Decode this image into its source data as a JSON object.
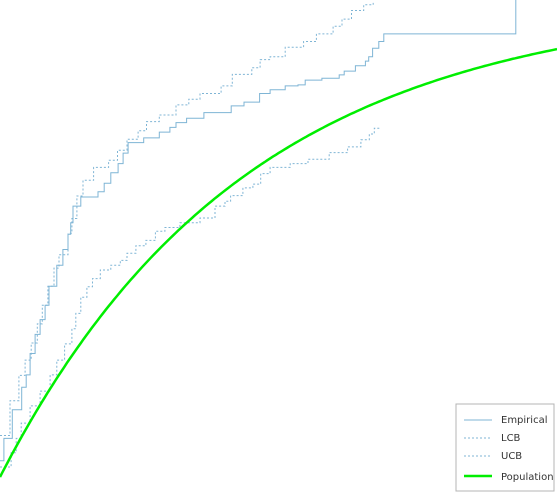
{
  "chart_data": {
    "type": "line",
    "title": "",
    "xlabel": "",
    "ylabel": "",
    "xlim": [
      0,
      100
    ],
    "ylim": [
      0,
      100
    ],
    "grid": false,
    "legend_position": "bottom-right",
    "colors": {
      "empirical": "#7fb5d5",
      "bounds": "#7fb5d5",
      "population": "#00ee00"
    },
    "series": [
      {
        "name": "Empirical",
        "style": "step",
        "points": [
          [
            0.0,
            3.4
          ],
          [
            0.7,
            8.1
          ],
          [
            2.2,
            14.1
          ],
          [
            3.9,
            18.8
          ],
          [
            4.7,
            21.4
          ],
          [
            5.4,
            25.9
          ],
          [
            6.3,
            29.9
          ],
          [
            7.2,
            33.0
          ],
          [
            8.1,
            36.0
          ],
          [
            8.8,
            40.0
          ],
          [
            10.2,
            44.4
          ],
          [
            11.3,
            47.7
          ],
          [
            12.2,
            50.9
          ],
          [
            12.7,
            53.3
          ],
          [
            13.1,
            56.8
          ],
          [
            14.5,
            58.7
          ],
          [
            17.6,
            59.8
          ],
          [
            18.7,
            61.6
          ],
          [
            19.9,
            63.8
          ],
          [
            21.2,
            65.7
          ],
          [
            22.1,
            67.9
          ],
          [
            23.0,
            70.1
          ],
          [
            25.8,
            71.1
          ],
          [
            28.6,
            72.3
          ],
          [
            30.5,
            73.3
          ],
          [
            31.6,
            74.3
          ],
          [
            33.5,
            75.2
          ],
          [
            36.6,
            76.4
          ],
          [
            41.5,
            77.8
          ],
          [
            43.8,
            78.6
          ],
          [
            46.6,
            80.4
          ],
          [
            48.5,
            81.2
          ],
          [
            51.2,
            82.0
          ],
          [
            53.5,
            82.2
          ],
          [
            54.8,
            83.2
          ],
          [
            57.8,
            83.6
          ],
          [
            60.9,
            84.3
          ],
          [
            61.8,
            85.1
          ],
          [
            63.8,
            86.2
          ],
          [
            65.6,
            87.2
          ],
          [
            66.2,
            88.1
          ],
          [
            66.9,
            89.9
          ],
          [
            68.0,
            91.3
          ],
          [
            68.9,
            92.9
          ],
          [
            92.6,
            92.9
          ],
          [
            92.6,
            100.0
          ]
        ]
      },
      {
        "name": "LCB",
        "style": "dashed-step",
        "points": [
          [
            0.0,
            2.1
          ],
          [
            2.0,
            5.1
          ],
          [
            2.9,
            8.1
          ],
          [
            3.8,
            11.3
          ],
          [
            5.4,
            14.9
          ],
          [
            7.2,
            18.0
          ],
          [
            9.0,
            21.4
          ],
          [
            10.2,
            24.5
          ],
          [
            11.6,
            27.9
          ],
          [
            12.9,
            31.1
          ],
          [
            13.6,
            34.3
          ],
          [
            14.5,
            37.7
          ],
          [
            15.6,
            39.9
          ],
          [
            16.6,
            41.6
          ],
          [
            18.0,
            43.4
          ],
          [
            19.9,
            44.4
          ],
          [
            21.6,
            45.4
          ],
          [
            22.8,
            46.9
          ],
          [
            24.4,
            48.5
          ],
          [
            26.2,
            49.6
          ],
          [
            27.9,
            51.5
          ],
          [
            29.6,
            52.3
          ],
          [
            32.3,
            53.3
          ],
          [
            35.9,
            54.3
          ],
          [
            38.6,
            56.8
          ],
          [
            40.4,
            57.8
          ],
          [
            41.4,
            59.0
          ],
          [
            43.6,
            60.6
          ],
          [
            45.4,
            61.4
          ],
          [
            46.8,
            63.6
          ],
          [
            48.5,
            64.9
          ],
          [
            52.1,
            65.7
          ],
          [
            55.3,
            66.6
          ],
          [
            59.1,
            68.0
          ],
          [
            62.4,
            69.2
          ],
          [
            64.8,
            70.7
          ],
          [
            66.3,
            71.9
          ],
          [
            67.2,
            73.1
          ],
          [
            68.0,
            73.5
          ]
        ]
      },
      {
        "name": "UCB",
        "style": "dashed-step",
        "points": [
          [
            0.0,
            8.7
          ],
          [
            1.8,
            16.0
          ],
          [
            3.4,
            21.3
          ],
          [
            4.5,
            24.5
          ],
          [
            5.6,
            28.1
          ],
          [
            6.7,
            32.1
          ],
          [
            7.6,
            36.0
          ],
          [
            8.6,
            40.0
          ],
          [
            9.7,
            43.8
          ],
          [
            10.6,
            46.6
          ],
          [
            12.2,
            51.1
          ],
          [
            12.9,
            54.2
          ],
          [
            13.8,
            58.9
          ],
          [
            14.9,
            62.2
          ],
          [
            16.8,
            64.9
          ],
          [
            19.5,
            66.4
          ],
          [
            21.1,
            68.5
          ],
          [
            22.8,
            70.8
          ],
          [
            24.8,
            72.6
          ],
          [
            26.3,
            74.5
          ],
          [
            28.6,
            75.9
          ],
          [
            31.6,
            78.0
          ],
          [
            33.9,
            79.2
          ],
          [
            35.9,
            80.4
          ],
          [
            39.7,
            82.0
          ],
          [
            41.7,
            84.4
          ],
          [
            45.2,
            85.8
          ],
          [
            46.7,
            87.5
          ],
          [
            48.5,
            88.1
          ],
          [
            51.2,
            90.1
          ],
          [
            54.5,
            91.3
          ],
          [
            56.8,
            92.9
          ],
          [
            59.8,
            94.5
          ],
          [
            61.4,
            96.0
          ],
          [
            63.1,
            97.8
          ],
          [
            65.3,
            99.0
          ],
          [
            67.0,
            99.4
          ]
        ]
      },
      {
        "name": "Population",
        "style": "smooth",
        "formula": "y = 100 * (1 - exp(-x / 44))",
        "x_range": [
          0,
          100
        ]
      }
    ]
  }
}
